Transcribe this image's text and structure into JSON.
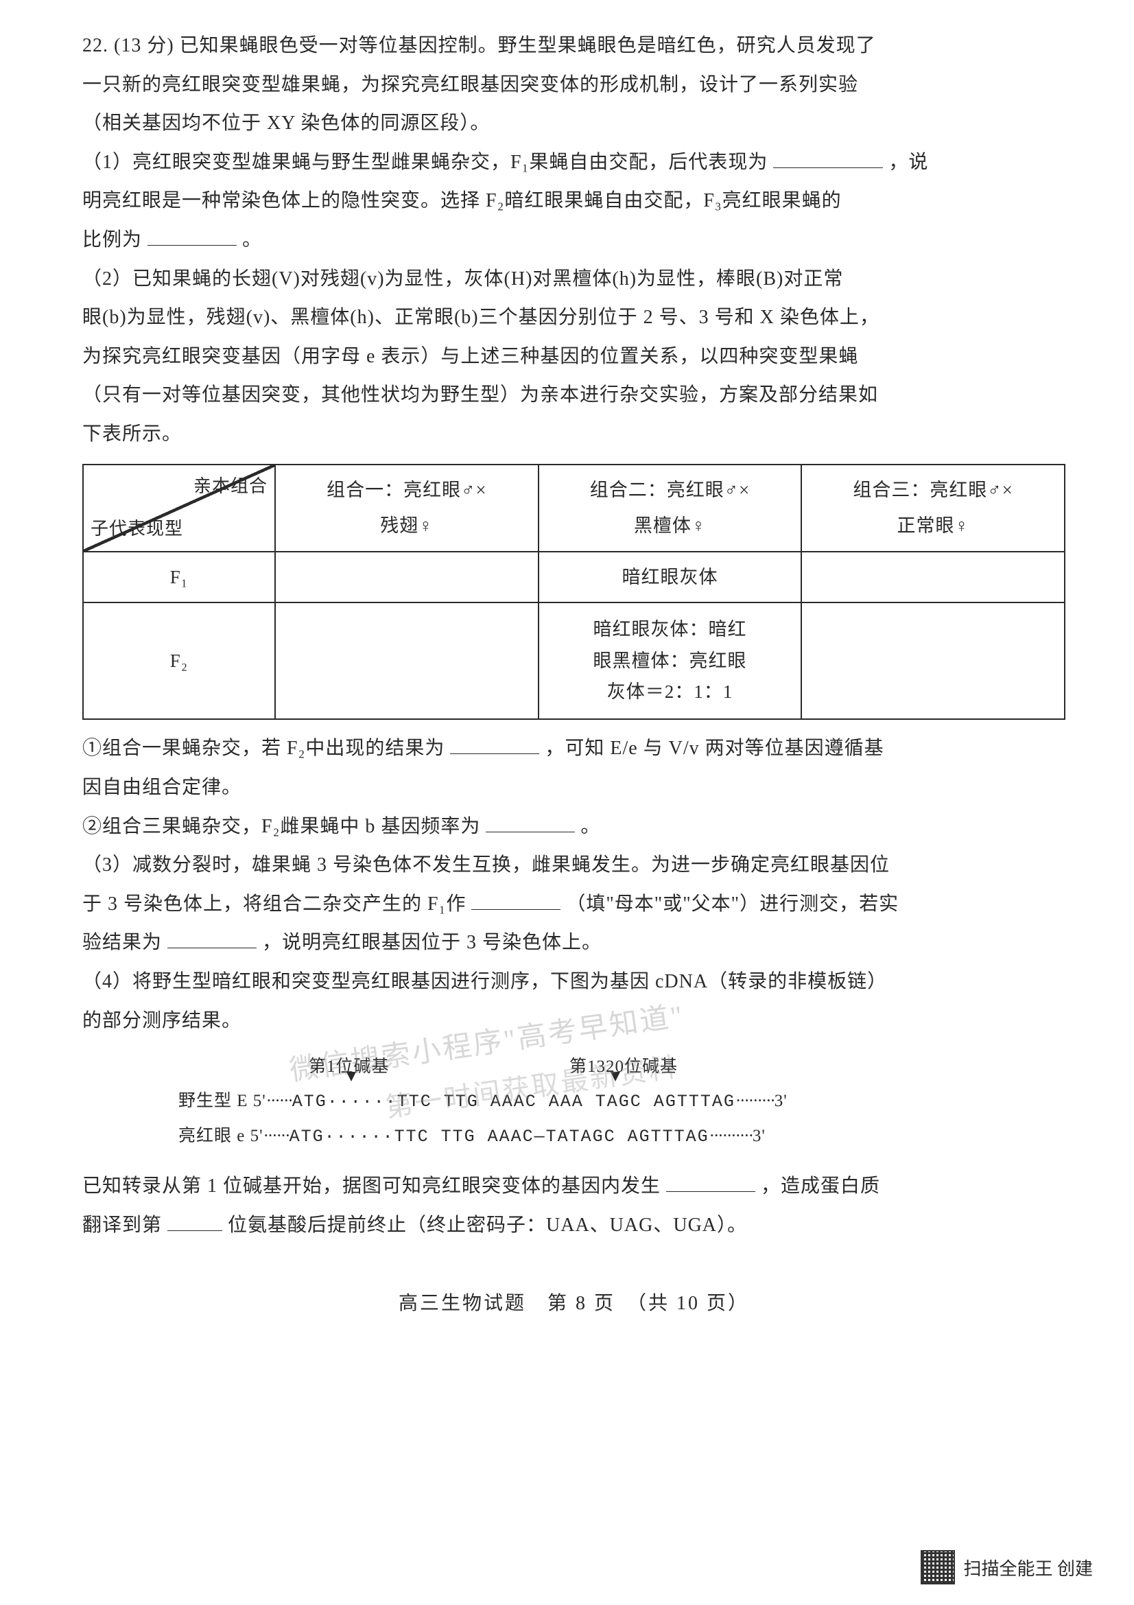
{
  "question": {
    "number": "22.",
    "points": "(13 分)",
    "intro_l1": "已知果蝇眼色受一对等位基因控制。野生型果蝇眼色是暗红色，研究人员发现了",
    "intro_l2": "一只新的亮红眼突变型雄果蝇，为探究亮红眼基因突变体的形成机制，设计了一系列实验",
    "intro_l3": "（相关基因均不位于 XY 染色体的同源区段）。",
    "p1_l1": "（1）亮红眼突变型雄果蝇与野生型雌果蝇杂交，F₁果蝇自由交配，后代表现为",
    "p1_l1_tail": "，说",
    "p1_l2": "明亮红眼是一种常染色体上的隐性突变。选择 F₂暗红眼果蝇自由交配，F₃亮红眼果蝇的",
    "p1_l3": "比例为",
    "p1_l3_tail": "。",
    "p2_l1": "（2）已知果蝇的长翅(V)对残翅(v)为显性，灰体(H)对黑檀体(h)为显性，棒眼(B)对正常",
    "p2_l2": "眼(b)为显性，残翅(v)、黑檀体(h)、正常眼(b)三个基因分别位于 2 号、3 号和 X 染色体上，",
    "p2_l3": "为探究亮红眼突变基因（用字母 e 表示）与上述三种基因的位置关系，以四种突变型果蝇",
    "p2_l4": "（只有一对等位基因突变，其他性状均为野生型）为亲本进行杂交实验，方案及部分结果如",
    "p2_l5": "下表所示。"
  },
  "table": {
    "diag_top": "亲本组合",
    "diag_bot": "子代表现型",
    "col1_l1": "组合一：亮红眼♂×",
    "col1_l2": "残翅♀",
    "col2_l1": "组合二：亮红眼♂×",
    "col2_l2": "黑檀体♀",
    "col3_l1": "组合三：亮红眼♂×",
    "col3_l2": "正常眼♀",
    "row_f1": "F₁",
    "row_f2": "F₂",
    "f1_col2": "暗红眼灰体",
    "f2_col2_l1": "暗红眼灰体：暗红",
    "f2_col2_l2": "眼黑檀体：亮红眼",
    "f2_col2_l3": "灰体＝2：1：1"
  },
  "after_table": {
    "q1_l1a": "①组合一果蝇杂交，若 F₂中出现的结果为",
    "q1_l1b": "，可知 E/e 与 V/v 两对等位基因遵循基",
    "q1_l2": "因自由组合定律。",
    "q2_l1a": "②组合三果蝇杂交，F₂雌果蝇中 b 基因频率为",
    "q2_l1b": "。",
    "p3_l1": "（3）减数分裂时，雄果蝇 3 号染色体不发生互换，雌果蝇发生。为进一步确定亮红眼基因位",
    "p3_l2a": "于 3 号染色体上，将组合二杂交产生的 F₁作",
    "p3_l2b": "（填\"母本\"或\"父本\"）进行测交，若实",
    "p3_l3a": "验结果为",
    "p3_l3b": "，说明亮红眼基因位于 3 号染色体上。",
    "p4_l1": "（4）将野生型暗红眼和突变型亮红眼基因进行测序，下图为基因 cDNA（转录的非模板链）",
    "p4_l2": "的部分测序结果。"
  },
  "sequence": {
    "label1": "第1位碱基",
    "label2": "第1320位碱基",
    "wt_prefix": "野生型 E 5'",
    "wt_seq": "ATG······TTC TTG AAAC AAA TAGC AGTTTAG",
    "wt_suffix": "3'",
    "mut_prefix": "亮红眼 e 5'",
    "mut_seq": "ATG······TTC TTG AAAC—TATAGC AGTTTAG",
    "mut_suffix": "3'"
  },
  "conclusion": {
    "l1a": "已知转录从第 1 位碱基开始，据图可知亮红眼突变体的基因内发生",
    "l1b": "，造成蛋白质",
    "l2a": "翻译到第",
    "l2b": "位氨基酸后提前终止（终止密码子：UAA、UAG、UGA）。"
  },
  "footer": {
    "text": "高三生物试题　第 8 页　（共 10 页）"
  },
  "badge": {
    "text": "扫描全能王 创建"
  },
  "watermark": {
    "line1": "微信搜索小程序\"高考早知道\"",
    "line2": "第一时间获取最新资料"
  }
}
